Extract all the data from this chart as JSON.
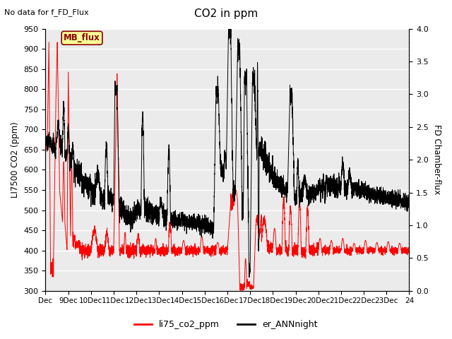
{
  "title": "CO2 in ppm",
  "suptitle": "No data for f_FD_Flux",
  "ylabel_left": "LI7500 CO2 (ppm)",
  "ylabel_right": "FD Chamber-flux",
  "ylim_left": [
    300,
    950
  ],
  "ylim_right": [
    0.0,
    4.0
  ],
  "yticks_left": [
    300,
    350,
    400,
    450,
    500,
    550,
    600,
    650,
    700,
    750,
    800,
    850,
    900,
    950
  ],
  "yticks_right": [
    0.0,
    0.5,
    1.0,
    1.5,
    2.0,
    2.5,
    3.0,
    3.5,
    4.0
  ],
  "legend_labels": [
    "li75_co2_ppm",
    "er_ANNnight"
  ],
  "legend_colors": [
    "red",
    "black"
  ],
  "inset_label": "MB_flux",
  "inset_color": "#8b0000",
  "inset_bg": "#ffff99",
  "inset_edge": "#8b0000",
  "background_color": "#ebebeb",
  "xmin": 8,
  "xmax": 24,
  "xtick_labels": [
    "Dec",
    "9Dec",
    "10Dec",
    "11Dec",
    "12Dec",
    "13Dec",
    "14Dec",
    "15Dec",
    "16Dec",
    "17Dec",
    "18Dec",
    "19Dec",
    "20Dec",
    "21Dec",
    "22Dec",
    "23Dec",
    "24"
  ],
  "grid_color": "white",
  "line1_color": "red",
  "line2_color": "black",
  "figsize": [
    6.4,
    4.8
  ],
  "dpi": 100
}
